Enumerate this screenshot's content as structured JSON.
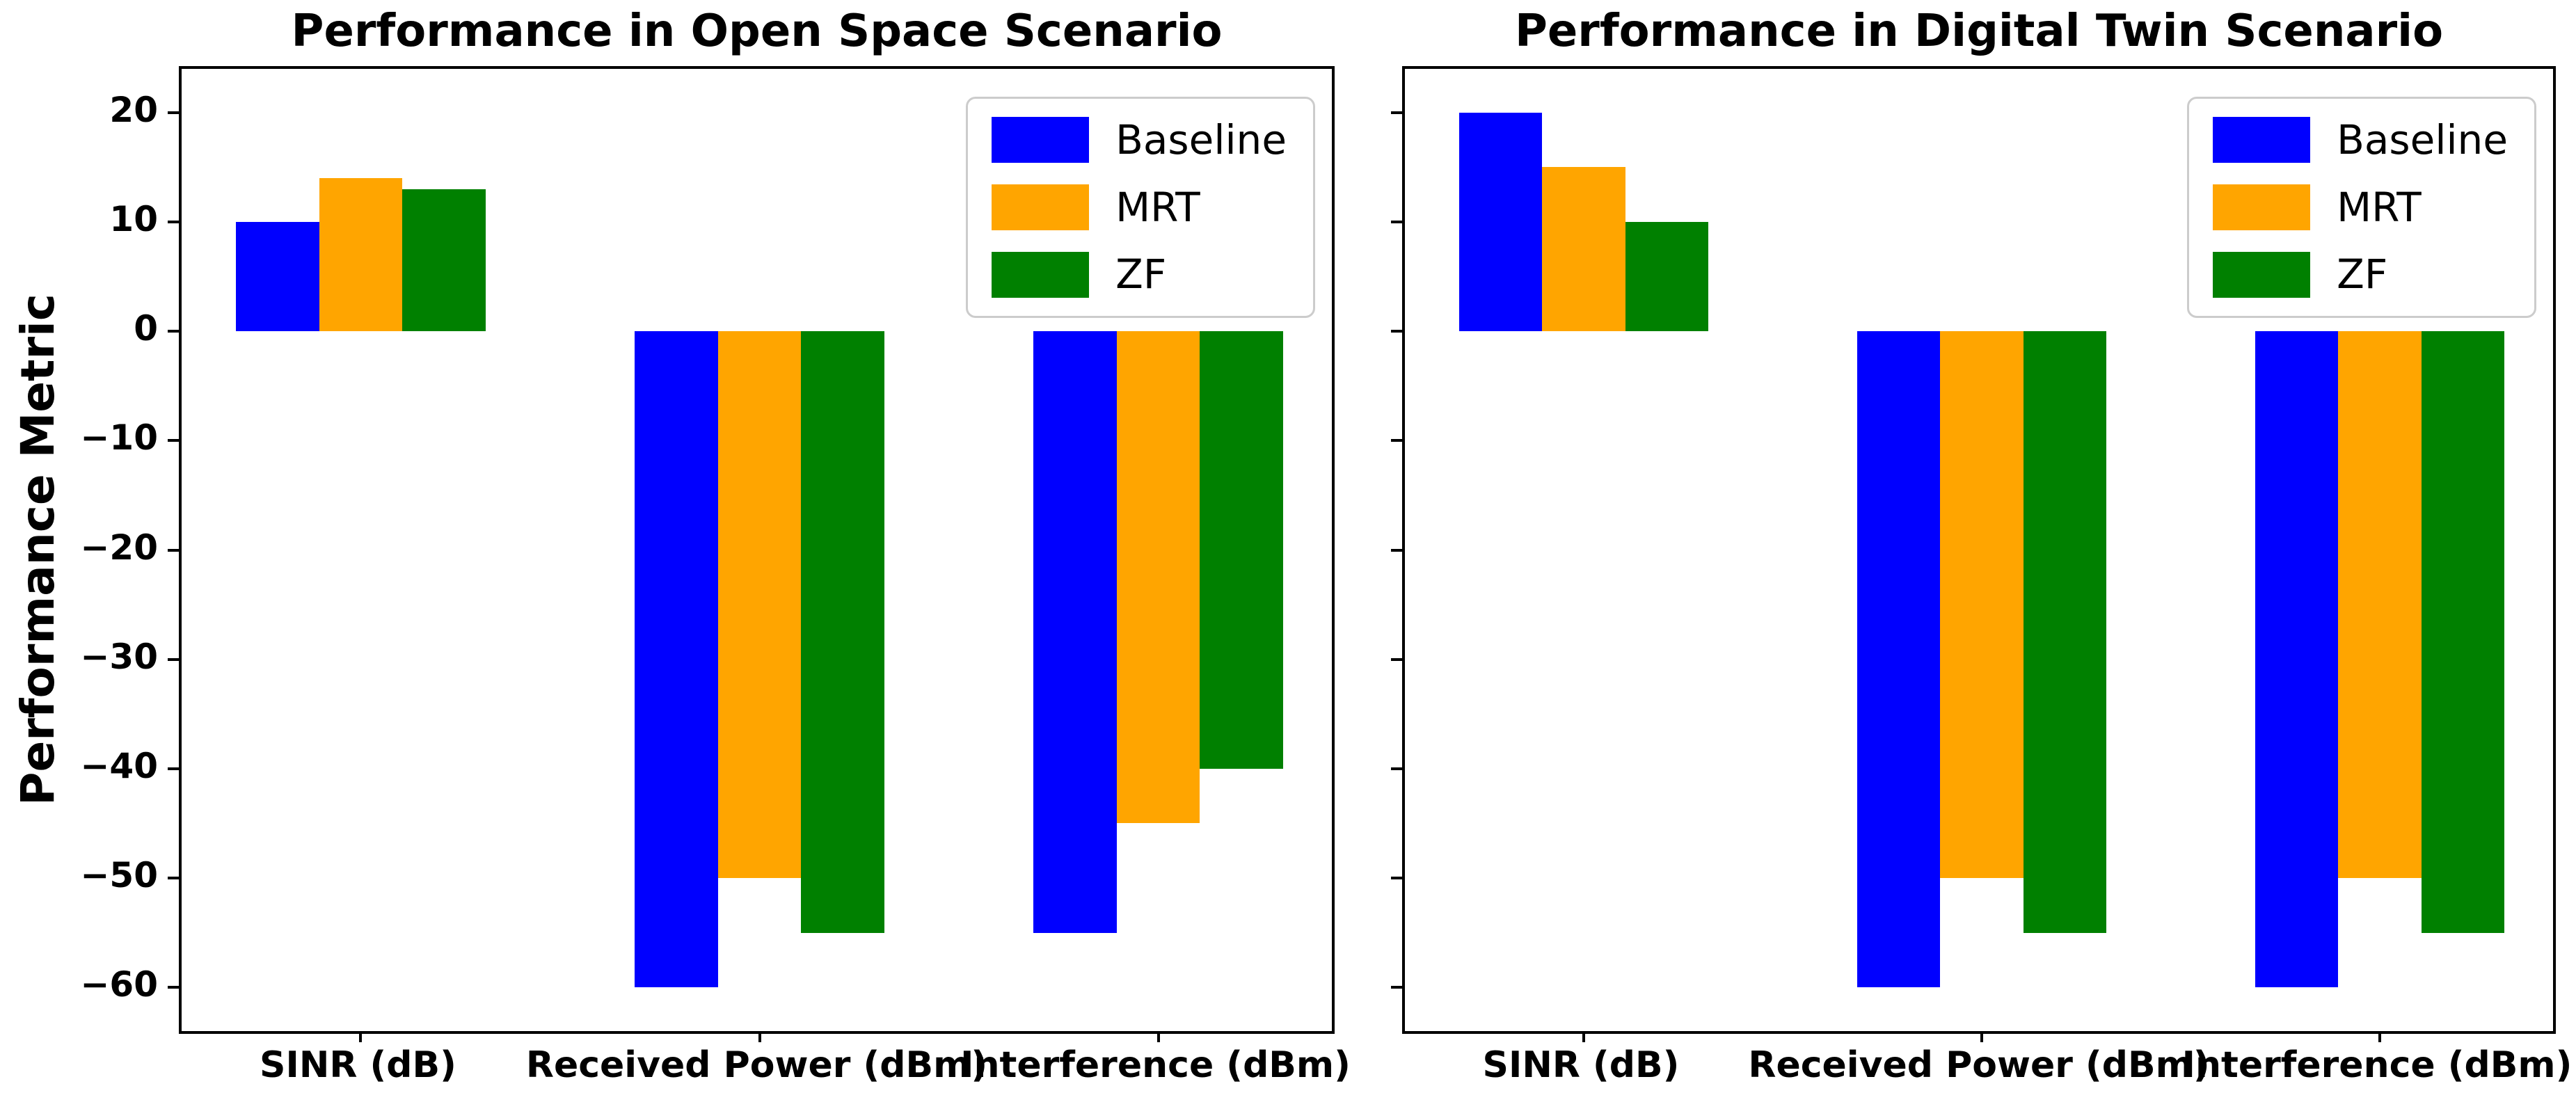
{
  "page": {
    "background": "#ffffff"
  },
  "shared": {
    "ylabel": "Performance Metric"
  },
  "chart_data": [
    {
      "type": "bar",
      "title": "Performance in Open Space Scenario",
      "categories": [
        "SINR (dB)",
        "Received Power (dBm)",
        "Interference (dBm)"
      ],
      "series": [
        {
          "name": "Baseline",
          "color": "#0000ff",
          "values": [
            10,
            -60,
            -55
          ]
        },
        {
          "name": "MRT",
          "color": "#ffa500",
          "values": [
            14,
            -50,
            -45
          ]
        },
        {
          "name": "ZF",
          "color": "#008000",
          "values": [
            13,
            -55,
            -40
          ]
        }
      ],
      "ylabel": "Performance Metric",
      "ylim": [
        -64,
        24
      ],
      "yticks": [
        20,
        10,
        0,
        -10,
        -20,
        -30,
        -40,
        -50,
        -60
      ],
      "show_ytick_labels": true,
      "grid": false,
      "legend": {
        "position": "upper right",
        "labels": [
          "Baseline",
          "MRT",
          "ZF"
        ]
      }
    },
    {
      "type": "bar",
      "title": "Performance in Digital Twin Scenario",
      "categories": [
        "SINR (dB)",
        "Received Power (dBm)",
        "Interference (dBm)"
      ],
      "series": [
        {
          "name": "Baseline",
          "color": "#0000ff",
          "values": [
            20,
            -60,
            -60
          ]
        },
        {
          "name": "MRT",
          "color": "#ffa500",
          "values": [
            15,
            -50,
            -50
          ]
        },
        {
          "name": "ZF",
          "color": "#008000",
          "values": [
            10,
            -55,
            -55
          ]
        }
      ],
      "ylim": [
        -64,
        24
      ],
      "yticks": [
        20,
        10,
        0,
        -10,
        -20,
        -30,
        -40,
        -50,
        -60
      ],
      "show_ytick_labels": false,
      "grid": false,
      "legend": {
        "position": "upper right",
        "labels": [
          "Baseline",
          "MRT",
          "ZF"
        ]
      }
    }
  ]
}
